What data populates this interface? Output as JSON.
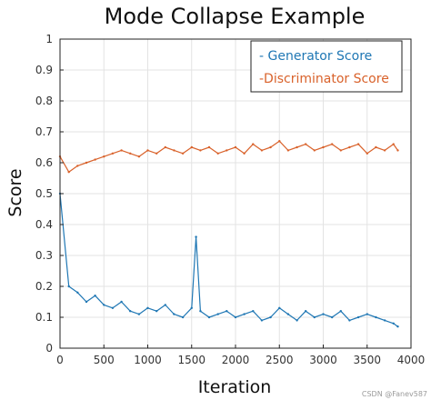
{
  "chart_data": {
    "type": "line",
    "title": "Mode Collapse Example",
    "xlabel": "Iteration",
    "ylabel": "Score",
    "xlim": [
      0,
      4000
    ],
    "ylim": [
      0,
      1
    ],
    "x_ticks": [
      0,
      500,
      1000,
      1500,
      2000,
      2500,
      3000,
      3500,
      4000
    ],
    "y_ticks": [
      0,
      0.1,
      0.2,
      0.3,
      0.4,
      0.5,
      0.6,
      0.7,
      0.8,
      0.9,
      1
    ],
    "x_tick_labels": [
      "0",
      "500",
      "1000",
      "1500",
      "2000",
      "2500",
      "3000",
      "3500",
      "4000"
    ],
    "y_tick_labels": [
      "0",
      "0.1",
      "0.2",
      "0.3",
      "0.4",
      "0.5",
      "0.6",
      "0.7",
      "0.8",
      "0.9",
      "1"
    ],
    "grid": true,
    "legend_position": "top-right",
    "series": [
      {
        "name": "- Generator Score",
        "color": "#1f77b4",
        "x": [
          0,
          100,
          200,
          300,
          400,
          500,
          600,
          700,
          800,
          900,
          1000,
          1100,
          1200,
          1300,
          1400,
          1500,
          1550,
          1600,
          1700,
          1800,
          1900,
          2000,
          2100,
          2200,
          2300,
          2400,
          2500,
          2600,
          2700,
          2800,
          2900,
          3000,
          3100,
          3200,
          3300,
          3400,
          3500,
          3600,
          3700,
          3800,
          3850
        ],
        "y": [
          0.5,
          0.2,
          0.18,
          0.15,
          0.17,
          0.14,
          0.13,
          0.15,
          0.12,
          0.11,
          0.13,
          0.12,
          0.14,
          0.11,
          0.1,
          0.13,
          0.36,
          0.12,
          0.1,
          0.11,
          0.12,
          0.1,
          0.11,
          0.12,
          0.09,
          0.1,
          0.13,
          0.11,
          0.09,
          0.12,
          0.1,
          0.11,
          0.1,
          0.12,
          0.09,
          0.1,
          0.11,
          0.1,
          0.09,
          0.08,
          0.07
        ]
      },
      {
        "name": "-Discriminator Score",
        "color": "#d9622b",
        "x": [
          0,
          100,
          200,
          300,
          400,
          500,
          600,
          700,
          800,
          900,
          1000,
          1100,
          1200,
          1300,
          1400,
          1500,
          1600,
          1700,
          1800,
          1900,
          2000,
          2100,
          2200,
          2300,
          2400,
          2500,
          2600,
          2700,
          2800,
          2900,
          3000,
          3100,
          3200,
          3300,
          3400,
          3500,
          3600,
          3700,
          3800,
          3850
        ],
        "y": [
          0.62,
          0.57,
          0.59,
          0.6,
          0.61,
          0.62,
          0.63,
          0.64,
          0.63,
          0.62,
          0.64,
          0.63,
          0.65,
          0.64,
          0.63,
          0.65,
          0.64,
          0.65,
          0.63,
          0.64,
          0.65,
          0.63,
          0.66,
          0.64,
          0.65,
          0.67,
          0.64,
          0.65,
          0.66,
          0.64,
          0.65,
          0.66,
          0.64,
          0.65,
          0.66,
          0.63,
          0.65,
          0.64,
          0.66,
          0.64
        ]
      }
    ]
  },
  "watermark": "CSDN @Fanev587"
}
